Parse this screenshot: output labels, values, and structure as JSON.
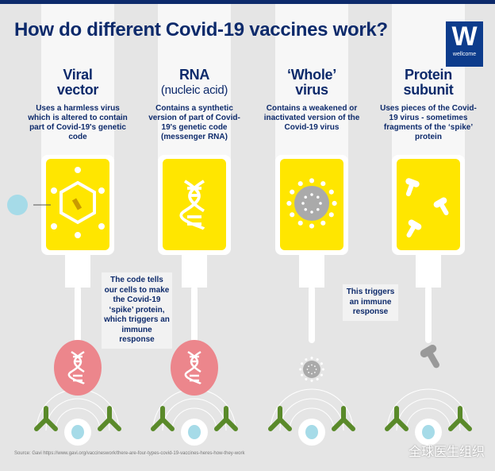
{
  "title": "How do different Covid-19 vaccines work?",
  "logo": {
    "letter": "W",
    "text": "wellcome",
    "color": "#0d3c8c"
  },
  "columns": [
    {
      "title": "Viral",
      "title2": "vector",
      "subtitle": "",
      "desc": "Uses a harmless virus which is altered to contain part of Covid-19's genetic code",
      "icon": "viral-vector-icon"
    },
    {
      "title": "RNA",
      "title2": "",
      "subtitle": "(nucleic acid)",
      "desc": "Contains a synthetic version of part of Covid-19's genetic code (messenger RNA)",
      "icon": "dna-icon"
    },
    {
      "title": "‘Whole’",
      "title2": "virus",
      "subtitle": "",
      "desc": "Contains a weakened or inactivated version of the Covid-19 virus",
      "icon": "virus-icon"
    },
    {
      "title": "Protein",
      "title2": "subunit",
      "subtitle": "",
      "desc": "Uses pieces of the Covid-19 virus - sometimes fragments of the ‘spike’ protein",
      "icon": "protein-fragment-icon"
    }
  ],
  "notes": {
    "code": "The code tells our cells to make the Covid-19 ‘spike’ protein, which triggers an immune response",
    "trigger": "This triggers an immune response"
  },
  "source": "Source: Gavi https://www.gavi.org/vaccineswork/there-are-four-types-covid-19-vaccines-heres-how-they-work",
  "watermark": "全球医生组织",
  "colors": {
    "navy": "#0d2a6b",
    "yellow": "#ffe600",
    "pink": "#ec868c",
    "green": "#5a8a2a",
    "cell": "#a6dbe8"
  }
}
